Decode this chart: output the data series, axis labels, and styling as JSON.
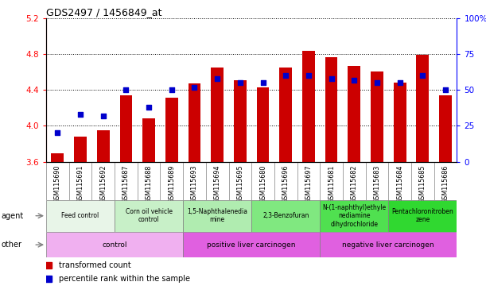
{
  "title": "GDS2497 / 1456849_at",
  "samples": [
    "GSM115690",
    "GSM115691",
    "GSM115692",
    "GSM115687",
    "GSM115688",
    "GSM115689",
    "GSM115693",
    "GSM115694",
    "GSM115695",
    "GSM115680",
    "GSM115696",
    "GSM115697",
    "GSM115681",
    "GSM115682",
    "GSM115683",
    "GSM115684",
    "GSM115685",
    "GSM115686"
  ],
  "transformed_count": [
    3.69,
    3.88,
    3.95,
    4.34,
    4.08,
    4.31,
    4.47,
    4.65,
    4.51,
    4.43,
    4.65,
    4.84,
    4.77,
    4.67,
    4.61,
    4.48,
    4.79,
    4.34
  ],
  "percentile_rank": [
    20,
    33,
    32,
    50,
    38,
    50,
    52,
    58,
    55,
    55,
    60,
    60,
    58,
    57,
    55,
    55,
    60,
    50
  ],
  "ylim": [
    3.6,
    5.2
  ],
  "y2lim": [
    0,
    100
  ],
  "yticks": [
    3.6,
    4.0,
    4.4,
    4.8,
    5.2
  ],
  "y2ticks": [
    0,
    25,
    50,
    75,
    100
  ],
  "y2ticklabels": [
    "0",
    "25",
    "50",
    "75",
    "100%"
  ],
  "bar_color": "#cc0000",
  "dot_color": "#0000cc",
  "bar_bottom": 3.6,
  "agent_groups": [
    {
      "label": "Feed control",
      "start": 0,
      "end": 3,
      "color": "#e8f5e8"
    },
    {
      "label": "Corn oil vehicle\ncontrol",
      "start": 3,
      "end": 6,
      "color": "#c8f0c8"
    },
    {
      "label": "1,5-Naphthalenedia\nmine",
      "start": 6,
      "end": 9,
      "color": "#b0ecb0"
    },
    {
      "label": "2,3-Benzofuran",
      "start": 9,
      "end": 12,
      "color": "#80e880"
    },
    {
      "label": "N-(1-naphthyl)ethyle\nnediamine\ndihydrochloride",
      "start": 12,
      "end": 15,
      "color": "#50e050"
    },
    {
      "label": "Pentachloronitroben\nzene",
      "start": 15,
      "end": 18,
      "color": "#30d830"
    }
  ],
  "other_groups": [
    {
      "label": "control",
      "start": 0,
      "end": 6,
      "color": "#f0b0f0"
    },
    {
      "label": "positive liver carcinogen",
      "start": 6,
      "end": 12,
      "color": "#e060e0"
    },
    {
      "label": "negative liver carcinogen",
      "start": 12,
      "end": 18,
      "color": "#e060e0"
    }
  ],
  "agent_label": "agent",
  "other_label": "other",
  "sample_bg_color": "#d0d0d0",
  "legend_items": [
    {
      "color": "#cc0000",
      "label": "transformed count"
    },
    {
      "color": "#0000cc",
      "label": "percentile rank within the sample"
    }
  ]
}
